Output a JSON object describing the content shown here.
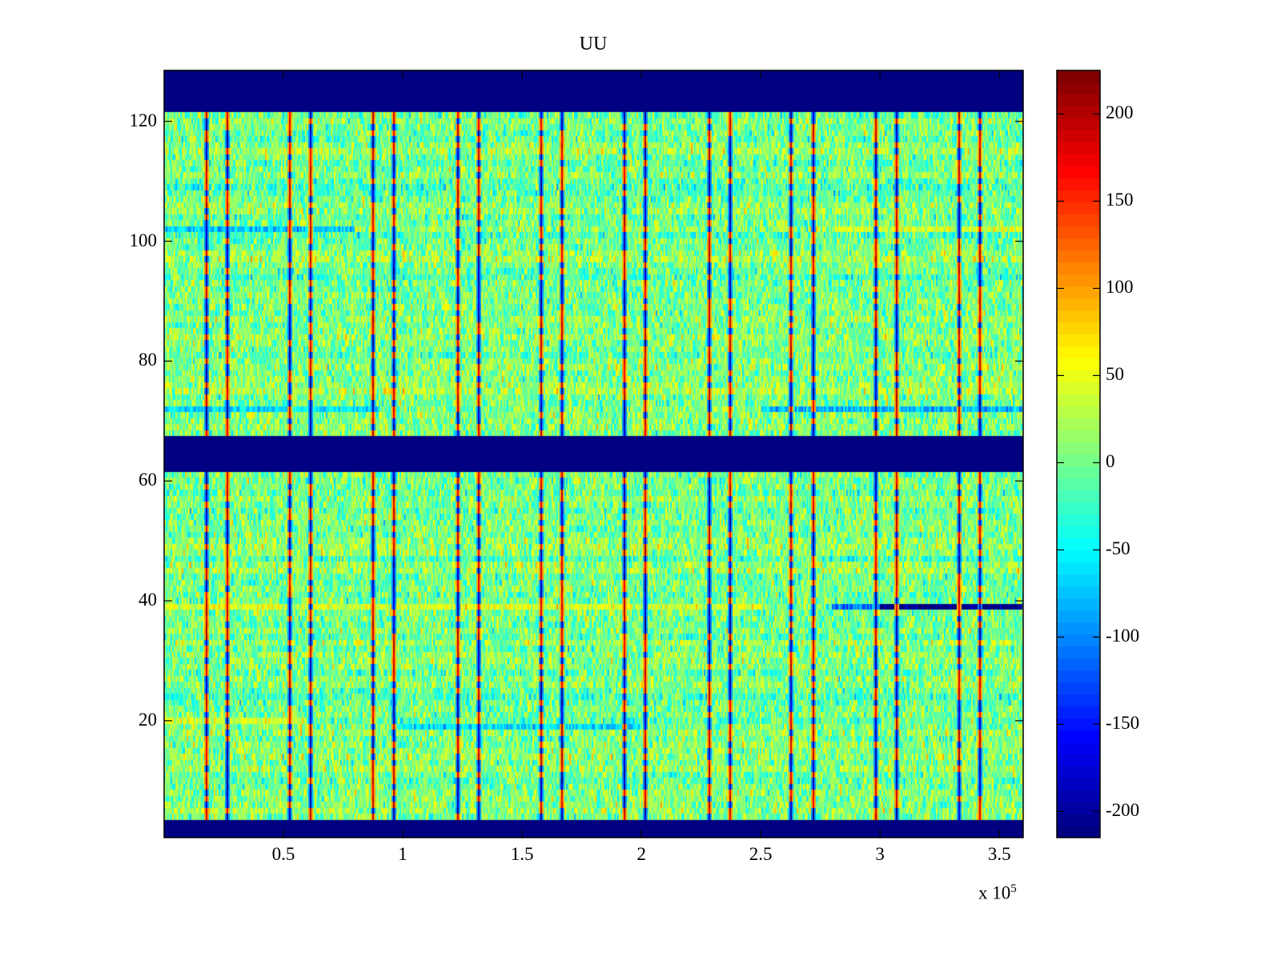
{
  "chart_data": {
    "type": "heatmap",
    "title": "UU",
    "xlabel": "",
    "ylabel": "",
    "x_multiplier_label": "x 10",
    "x_multiplier_exp": "5",
    "xlim": [
      0,
      360000
    ],
    "ylim": [
      0.5,
      128.5
    ],
    "rows": 128,
    "x_ticks": [
      {
        "value": 50000,
        "label": "0.5"
      },
      {
        "value": 100000,
        "label": "1"
      },
      {
        "value": 150000,
        "label": "1.5"
      },
      {
        "value": 200000,
        "label": "2"
      },
      {
        "value": 250000,
        "label": "2.5"
      },
      {
        "value": 300000,
        "label": "3"
      },
      {
        "value": 350000,
        "label": "3.5"
      }
    ],
    "y_ticks": [
      {
        "value": 20,
        "label": "20"
      },
      {
        "value": 40,
        "label": "40"
      },
      {
        "value": 60,
        "label": "60"
      },
      {
        "value": 80,
        "label": "80"
      },
      {
        "value": 100,
        "label": "100"
      },
      {
        "value": 120,
        "label": "120"
      }
    ],
    "colormap": "jet",
    "clim": [
      -215,
      225
    ],
    "colorbar_ticks": [
      {
        "value": 200,
        "label": "200"
      },
      {
        "value": 150,
        "label": "150"
      },
      {
        "value": 100,
        "label": "100"
      },
      {
        "value": 50,
        "label": "50"
      },
      {
        "value": 0,
        "label": "0"
      },
      {
        "value": -50,
        "label": "-50"
      },
      {
        "value": -100,
        "label": "-100"
      },
      {
        "value": -150,
        "label": "-150"
      },
      {
        "value": -200,
        "label": "-200"
      }
    ],
    "background_mean": 5,
    "background_std": 30,
    "empty_row_bands": [
      {
        "rows": [
          1,
          3
        ],
        "value": -215
      },
      {
        "rows": [
          62,
          67
        ],
        "value": -215
      },
      {
        "rows": [
          122,
          128
        ],
        "value": -215
      }
    ],
    "spike_columns_x": [
      17450,
      26200,
      52350,
      61100,
      87250,
      96000,
      122500,
      131200,
      157400,
      166100,
      192600,
      201300,
      227900,
      236600,
      262400,
      271800,
      297700,
      306400,
      332900,
      341600
    ],
    "spike_amplitude": 210,
    "row_features": [
      {
        "row": 39,
        "x_range": [
          0,
          250000
        ],
        "value": 45
      },
      {
        "row": 39,
        "x_range": [
          280000,
          300000
        ],
        "value": -110
      },
      {
        "row": 39,
        "x_range": [
          300000,
          360000
        ],
        "value": -210
      },
      {
        "row": 72,
        "x_range": [
          250000,
          360000
        ],
        "value": -80
      },
      {
        "row": 72,
        "x_range": [
          0,
          90000
        ],
        "value": -60
      },
      {
        "row": 102,
        "x_range": [
          0,
          80000
        ],
        "value": -70
      },
      {
        "row": 102,
        "x_range": [
          280000,
          360000
        ],
        "value": 40
      },
      {
        "row": 19,
        "x_range": [
          100000,
          200000
        ],
        "value": -60
      },
      {
        "row": 20,
        "x_range": [
          0,
          60000
        ],
        "value": 45
      }
    ]
  }
}
